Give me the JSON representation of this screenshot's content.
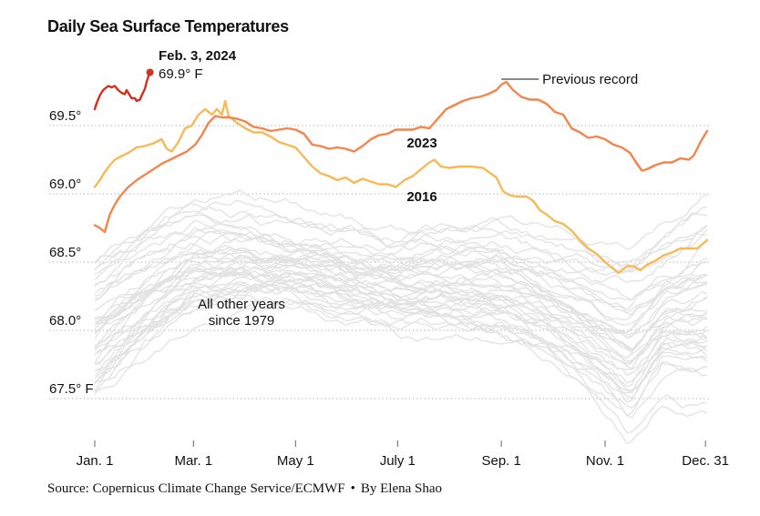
{
  "chart_data": {
    "type": "line",
    "title": "Daily Sea Surface Temperatures",
    "xlabel": "",
    "ylabel": "",
    "xlim": [
      0,
      366
    ],
    "ylim": [
      67.25,
      69.95
    ],
    "grid": true,
    "y_ticks": [
      {
        "value": 69.5,
        "label": "69.5°"
      },
      {
        "value": 69.0,
        "label": "69.0°"
      },
      {
        "value": 68.5,
        "label": "68.5°"
      },
      {
        "value": 68.0,
        "label": "68.0°"
      },
      {
        "value": 67.5,
        "label": "67.5° F"
      }
    ],
    "x_ticks": [
      {
        "day": 0,
        "label": "Jan. 1"
      },
      {
        "day": 59,
        "label": "Mar. 1"
      },
      {
        "day": 120,
        "label": "May 1"
      },
      {
        "day": 181,
        "label": "July 1"
      },
      {
        "day": 243,
        "label": "Sep. 1"
      },
      {
        "day": 305,
        "label": "Nov. 1"
      },
      {
        "day": 365,
        "label": "Dec. 31"
      }
    ],
    "series": [
      {
        "name": "2024",
        "color": "#d0321e",
        "x": [
          0,
          1,
          3,
          5,
          8,
          10,
          12,
          14,
          16,
          18,
          19,
          21,
          22,
          24,
          25,
          27,
          28,
          30,
          31,
          32,
          33
        ],
        "values": [
          69.62,
          69.66,
          69.72,
          69.76,
          69.79,
          69.78,
          69.79,
          69.76,
          69.74,
          69.73,
          69.76,
          69.72,
          69.7,
          69.7,
          69.68,
          69.69,
          69.72,
          69.77,
          69.82,
          69.86,
          69.89
        ],
        "end_label": {
          "date": "Feb. 3, 2024",
          "value": "69.9° F"
        }
      },
      {
        "name": "2023",
        "color": "#f4844c",
        "label": "2023",
        "x": [
          0,
          3,
          6,
          9,
          12,
          15,
          20,
          25,
          30,
          35,
          40,
          45,
          50,
          55,
          60,
          64,
          68,
          72,
          76,
          80,
          85,
          90,
          95,
          100,
          105,
          110,
          115,
          120,
          125,
          130,
          135,
          140,
          145,
          150,
          155,
          160,
          165,
          170,
          175,
          180,
          185,
          190,
          195,
          200,
          205,
          210,
          215,
          220,
          225,
          230,
          235,
          240,
          243,
          246,
          250,
          255,
          260,
          265,
          270,
          275,
          280,
          285,
          290,
          295,
          300,
          305,
          310,
          315,
          320,
          323,
          327,
          330,
          335,
          340,
          345,
          350,
          355,
          358,
          362,
          366
        ],
        "values": [
          68.77,
          68.75,
          68.72,
          68.85,
          68.92,
          68.98,
          69.05,
          69.1,
          69.14,
          69.18,
          69.22,
          69.25,
          69.28,
          69.31,
          69.36,
          69.43,
          69.52,
          69.57,
          69.56,
          69.56,
          69.55,
          69.53,
          69.49,
          69.48,
          69.46,
          69.47,
          69.48,
          69.47,
          69.44,
          69.36,
          69.35,
          69.33,
          69.34,
          69.33,
          69.31,
          69.35,
          69.4,
          69.43,
          69.44,
          69.47,
          69.47,
          69.47,
          69.49,
          69.48,
          69.55,
          69.62,
          69.65,
          69.68,
          69.7,
          69.71,
          69.73,
          69.76,
          69.8,
          69.82,
          69.76,
          69.71,
          69.69,
          69.69,
          69.66,
          69.6,
          69.58,
          69.48,
          69.45,
          69.41,
          69.42,
          69.4,
          69.36,
          69.34,
          69.3,
          69.24,
          69.17,
          69.18,
          69.21,
          69.23,
          69.23,
          69.26,
          69.25,
          69.28,
          69.38,
          69.46
        ]
      },
      {
        "name": "2016",
        "color": "#f7b955",
        "label": "2016",
        "x": [
          0,
          3,
          6,
          9,
          12,
          15,
          20,
          25,
          30,
          35,
          40,
          43,
          46,
          50,
          54,
          58,
          62,
          66,
          70,
          73,
          76,
          78,
          80,
          85,
          90,
          95,
          100,
          105,
          110,
          115,
          120,
          125,
          130,
          135,
          140,
          145,
          150,
          155,
          160,
          165,
          170,
          175,
          180,
          185,
          190,
          195,
          200,
          203,
          207,
          212,
          218,
          225,
          232,
          240,
          244,
          248,
          252,
          258,
          262,
          266,
          270,
          275,
          280,
          285,
          290,
          295,
          300,
          305,
          310,
          313,
          318,
          322,
          326,
          330,
          335,
          340,
          345,
          350,
          355,
          360,
          366
        ],
        "values": [
          69.05,
          69.1,
          69.16,
          69.21,
          69.25,
          69.27,
          69.3,
          69.34,
          69.35,
          69.37,
          69.4,
          69.33,
          69.31,
          69.38,
          69.48,
          69.5,
          69.58,
          69.62,
          69.58,
          69.62,
          69.58,
          69.68,
          69.57,
          69.52,
          69.48,
          69.45,
          69.45,
          69.42,
          69.38,
          69.36,
          69.34,
          69.27,
          69.2,
          69.15,
          69.13,
          69.1,
          69.12,
          69.08,
          69.11,
          69.09,
          69.07,
          69.07,
          69.05,
          69.1,
          69.13,
          69.18,
          69.23,
          69.25,
          69.2,
          69.19,
          69.2,
          69.2,
          69.19,
          69.12,
          69.02,
          68.99,
          68.98,
          68.98,
          68.95,
          68.88,
          68.85,
          68.8,
          68.78,
          68.73,
          68.66,
          68.6,
          68.56,
          68.5,
          68.45,
          68.42,
          68.47,
          68.47,
          68.44,
          68.48,
          68.51,
          68.55,
          68.57,
          68.6,
          68.6,
          68.6,
          68.66
        ]
      }
    ],
    "background_series_label": "All other years since 1979",
    "background_series_color": "#e2e2e2",
    "background_envelope": {
      "x": [
        0,
        30,
        60,
        90,
        120,
        150,
        180,
        210,
        240,
        270,
        300,
        320,
        340,
        366
      ],
      "upper": [
        68.55,
        68.75,
        68.92,
        68.92,
        68.85,
        68.8,
        68.75,
        68.8,
        68.82,
        68.7,
        68.6,
        68.6,
        68.75,
        69.0
      ],
      "lower": [
        67.55,
        67.9,
        68.15,
        68.2,
        68.2,
        68.1,
        68.05,
        68.05,
        68.0,
        67.85,
        67.6,
        67.35,
        67.7,
        67.6
      ]
    },
    "annotations": [
      {
        "text": "Previous record",
        "series": "2023",
        "day": 243
      },
      {
        "text": "All other years",
        "text2": "since 1979"
      }
    ]
  },
  "footer": {
    "source": "Source: Copernicus Climate Change Service/ECMWF",
    "separator": "•",
    "byline": "By Elena Shao"
  }
}
